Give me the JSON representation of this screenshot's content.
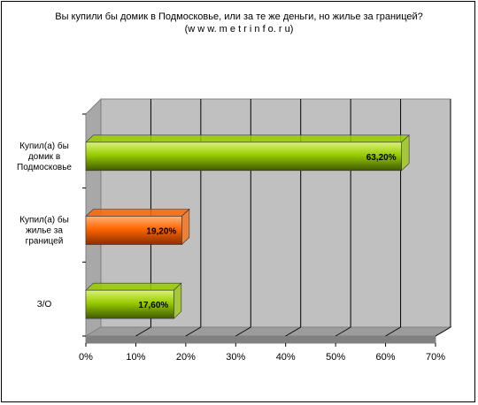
{
  "chart_data": {
    "type": "bar",
    "orientation": "horizontal",
    "title": "Вы купили бы домик в Подмосковье, или за те же деньги, но жилье за границей?",
    "subtitle": "(w w w. m e t r i n f o. r u)",
    "categories": [
      [
        "Купил(а) бы",
        "домик в",
        "Подмосковье"
      ],
      [
        "Купил(а) бы",
        "жилье за",
        "границей"
      ],
      [
        "З/О"
      ]
    ],
    "values": [
      63.2,
      19.2,
      17.6
    ],
    "value_labels": [
      "63,20%",
      "19,20%",
      "17,60%"
    ],
    "bar_colors": [
      "#99cc00",
      "#ff6600",
      "#99cc00"
    ],
    "xlim": [
      0,
      70
    ],
    "xticks": [
      "0%",
      "10%",
      "20%",
      "30%",
      "40%",
      "50%",
      "60%",
      "70%"
    ],
    "grid": true,
    "legend": "none",
    "style": "3d"
  }
}
